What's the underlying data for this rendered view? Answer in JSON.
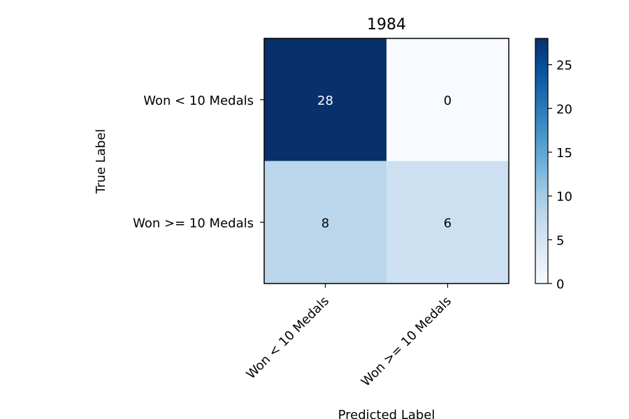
{
  "chart_data": {
    "type": "heatmap",
    "title": "1984",
    "xlabel": "Predicted Label",
    "ylabel": "True Label",
    "x_categories": [
      "Won < 10 Medals",
      "Won >= 10 Medals"
    ],
    "y_categories": [
      "Won < 10 Medals",
      "Won >= 10 Medals"
    ],
    "matrix": [
      [
        28,
        0
      ],
      [
        8,
        6
      ]
    ],
    "colormap": "Blues",
    "colorbar": {
      "min": 0,
      "max": 28,
      "ticks": [
        0,
        5,
        10,
        15,
        20,
        25
      ]
    },
    "grid": false
  }
}
